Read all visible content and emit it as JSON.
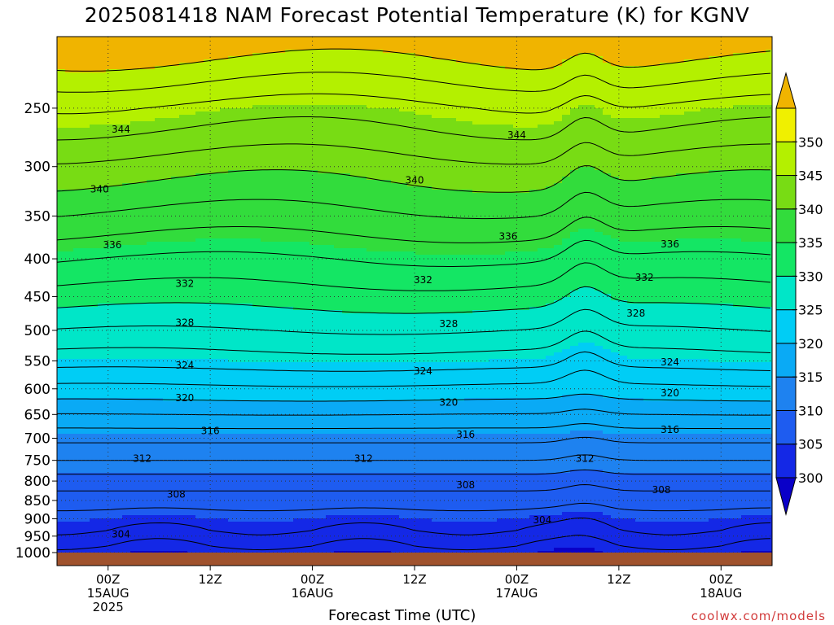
{
  "chart_data": {
    "type": "contour",
    "title": "2025081418 NAM Forecast Potential Temperature (K) for KGNV",
    "xlabel": "Forecast Time (UTC)",
    "ylabel": "",
    "y_scale": "log",
    "y_inverted": true,
    "y_unit": "hPa",
    "yticks": [
      250,
      300,
      350,
      400,
      450,
      500,
      550,
      600,
      650,
      700,
      750,
      800,
      850,
      900,
      950,
      1000
    ],
    "ylim": [
      1000,
      200
    ],
    "xticks": [
      {
        "t": 0,
        "label": [
          "00Z",
          "15AUG",
          "2025"
        ]
      },
      {
        "t": 12,
        "label": [
          "12Z"
        ]
      },
      {
        "t": 24,
        "label": [
          "00Z",
          "16AUG"
        ]
      },
      {
        "t": 36,
        "label": [
          "12Z"
        ]
      },
      {
        "t": 48,
        "label": [
          "00Z",
          "17AUG"
        ]
      },
      {
        "t": 60,
        "label": [
          "12Z"
        ]
      },
      {
        "t": 72,
        "label": [
          "00Z",
          "18AUG"
        ]
      }
    ],
    "xlim_hours": [
      -6,
      78
    ],
    "grid": true,
    "colorbar": {
      "levels": [
        300,
        305,
        310,
        315,
        320,
        325,
        330,
        335,
        340,
        345,
        350
      ],
      "labels": [
        "300",
        "305",
        "310",
        "315",
        "320",
        "325",
        "330",
        "335",
        "340",
        "345",
        "350"
      ],
      "colors": [
        "#1428e6",
        "#1e5cf0",
        "#1e82f0",
        "#0aaaf5",
        "#00cdf5",
        "#00e6c8",
        "#14e664",
        "#32dc3c",
        "#78dc14",
        "#b4f000",
        "#f0f000"
      ],
      "under_color": "#0a00c8",
      "over_color": "#f0b400"
    },
    "contour_labels": [
      {
        "value": "344",
        "t": 1.5,
        "p": 267
      },
      {
        "value": "344",
        "t": 48.0,
        "p": 272
      },
      {
        "value": "340",
        "t": -1.0,
        "p": 322
      },
      {
        "value": "340",
        "t": 36.0,
        "p": 313
      },
      {
        "value": "336",
        "t": 47.0,
        "p": 373
      },
      {
        "value": "336",
        "t": 0.5,
        "p": 383
      },
      {
        "value": "336",
        "t": 66.0,
        "p": 382
      },
      {
        "value": "332",
        "t": 9.0,
        "p": 432
      },
      {
        "value": "332",
        "t": 37.0,
        "p": 427
      },
      {
        "value": "332",
        "t": 63.0,
        "p": 424
      },
      {
        "value": "328",
        "t": 9.0,
        "p": 488
      },
      {
        "value": "328",
        "t": 40.0,
        "p": 490
      },
      {
        "value": "328",
        "t": 62.0,
        "p": 474
      },
      {
        "value": "324",
        "t": 9.0,
        "p": 558
      },
      {
        "value": "324",
        "t": 37.0,
        "p": 568
      },
      {
        "value": "324",
        "t": 66.0,
        "p": 552
      },
      {
        "value": "320",
        "t": 9.0,
        "p": 617
      },
      {
        "value": "320",
        "t": 40.0,
        "p": 626
      },
      {
        "value": "320",
        "t": 66.0,
        "p": 608
      },
      {
        "value": "316",
        "t": 12.0,
        "p": 684
      },
      {
        "value": "316",
        "t": 42.0,
        "p": 692
      },
      {
        "value": "316",
        "t": 66.0,
        "p": 682
      },
      {
        "value": "312",
        "t": 4.0,
        "p": 746
      },
      {
        "value": "312",
        "t": 30.0,
        "p": 746
      },
      {
        "value": "312",
        "t": 56.0,
        "p": 746
      },
      {
        "value": "308",
        "t": 8.0,
        "p": 834
      },
      {
        "value": "308",
        "t": 42.0,
        "p": 810
      },
      {
        "value": "308",
        "t": 65.0,
        "p": 822
      },
      {
        "value": "304",
        "t": 1.5,
        "p": 944
      },
      {
        "value": "304",
        "t": 51.0,
        "p": 903
      }
    ]
  },
  "x_axis_label": "Forecast Time (UTC)",
  "credit": "coolwx.com/models"
}
